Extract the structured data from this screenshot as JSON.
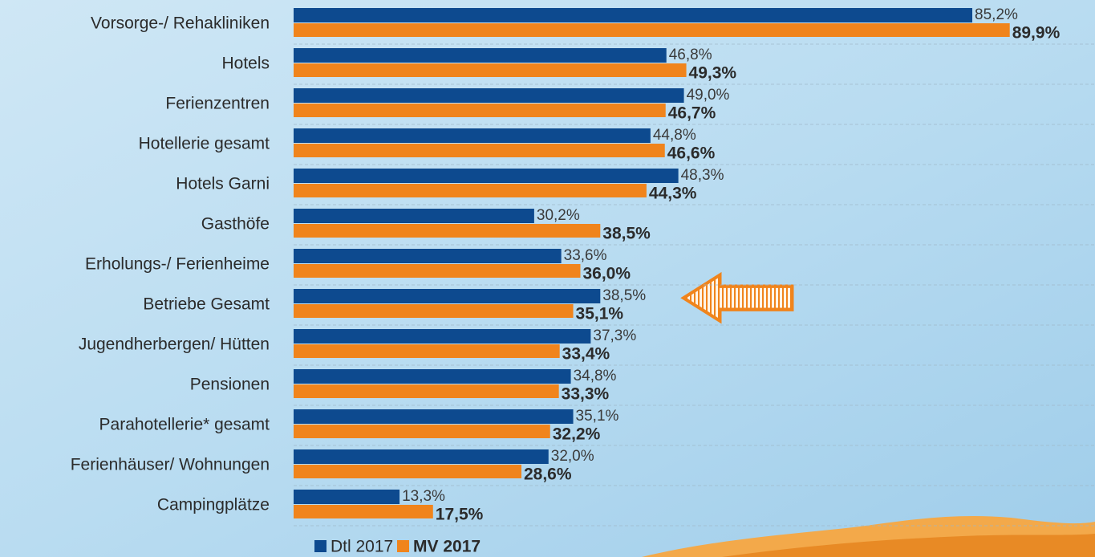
{
  "chart_data": {
    "type": "bar",
    "orientation": "horizontal",
    "categories": [
      "Vorsorge-/ Rehakliniken",
      "Hotels",
      "Ferienzentren",
      "Hotellerie gesamt",
      "Hotels Garni",
      "Gasthöfe",
      "Erholungs-/ Ferienheime",
      "Betriebe Gesamt",
      "Jugendherbergen/ Hütten",
      "Pensionen",
      "Parahotellerie* gesamt",
      "Ferienhäuser/ Wohnungen",
      "Campingplätze"
    ],
    "series": [
      {
        "name": "Dtl 2017",
        "color": "#0d4a8f",
        "values": [
          85.2,
          46.8,
          49.0,
          44.8,
          48.3,
          30.2,
          33.6,
          38.5,
          37.3,
          34.8,
          35.1,
          32.0,
          13.3
        ],
        "value_labels": [
          "85,2%",
          "46,8%",
          "49,0%",
          "44,8%",
          "48,3%",
          "30,2%",
          "33,6%",
          "38,5%",
          "37,3%",
          "34,8%",
          "35,1%",
          "32,0%",
          "13,3%"
        ]
      },
      {
        "name": "MV 2017",
        "color": "#f0841c",
        "values": [
          89.9,
          49.3,
          46.7,
          46.6,
          44.3,
          38.5,
          36.0,
          35.1,
          33.4,
          33.3,
          32.2,
          28.6,
          17.5
        ],
        "value_labels": [
          "89,9%",
          "49,3%",
          "46,7%",
          "46,6%",
          "44,3%",
          "38,5%",
          "36,0%",
          "35,1%",
          "33,4%",
          "33,3%",
          "32,2%",
          "28,6%",
          "17,5%"
        ]
      }
    ],
    "legend": "bottom"
  }
}
